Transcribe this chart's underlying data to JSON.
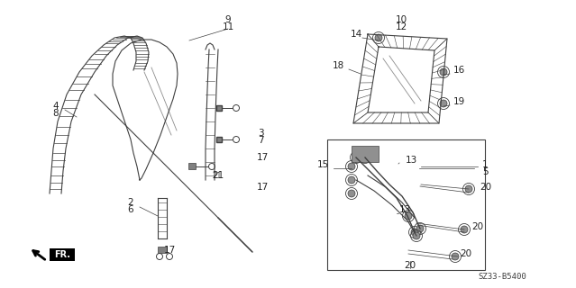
{
  "bg_color": "#ffffff",
  "line_color": "#404040",
  "part_number": "SZ33-B5400",
  "fig_width": 6.39,
  "fig_height": 3.2,
  "dpi": 100
}
